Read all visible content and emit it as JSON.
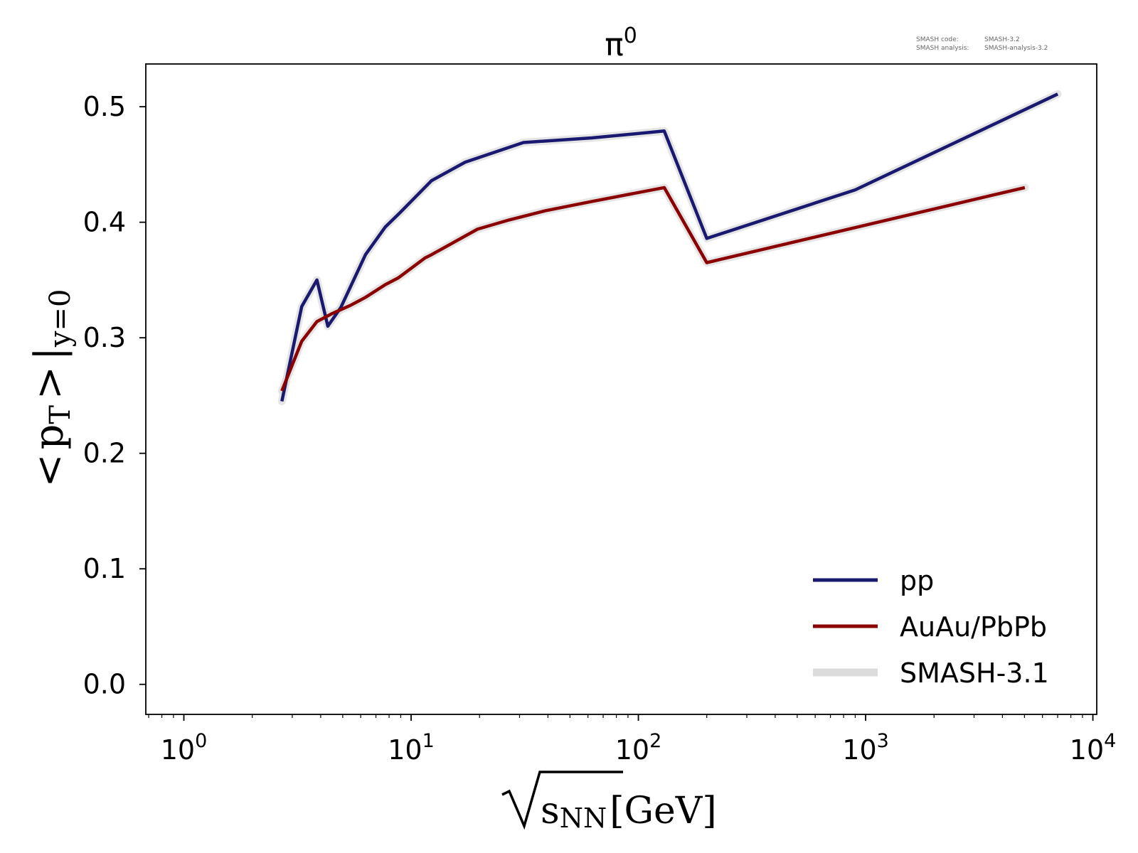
{
  "chart_data": {
    "type": "line",
    "title": "π⁰",
    "title_base": "π",
    "title_sup": "0",
    "xlabel": "√sNN [GeV]",
    "xlabel_parts": {
      "base": "s",
      "sub": "NN",
      "unit": "[GeV]"
    },
    "ylabel": "<pT > |y=0",
    "ylabel_parts": {
      "lt": "<",
      "p": "p",
      "p_sub": "T",
      "gt": ">",
      "bar": "|",
      "sub": "y=0"
    },
    "x_scale": "log",
    "xlim": [
      0.68,
      10400
    ],
    "ylim": [
      -0.026,
      0.537
    ],
    "x_ticks": [
      {
        "value": 1,
        "base": "10",
        "exp": "0"
      },
      {
        "value": 10,
        "base": "10",
        "exp": "1"
      },
      {
        "value": 100,
        "base": "10",
        "exp": "2"
      },
      {
        "value": 1000,
        "base": "10",
        "exp": "3"
      },
      {
        "value": 10000,
        "base": "10",
        "exp": "4"
      }
    ],
    "y_ticks": [
      {
        "value": 0.0,
        "label": "0.0"
      },
      {
        "value": 0.1,
        "label": "0.1"
      },
      {
        "value": 0.2,
        "label": "0.2"
      },
      {
        "value": 0.3,
        "label": "0.3"
      },
      {
        "value": 0.4,
        "label": "0.4"
      },
      {
        "value": 0.5,
        "label": "0.5"
      }
    ],
    "grid": false,
    "legend_position": "bottom-right",
    "series": [
      {
        "name": "pp",
        "color": "#191970",
        "x": [
          2.7,
          3.3,
          3.85,
          4.3,
          4.9,
          6.3,
          7.7,
          8.8,
          12.3,
          17.3,
          31.2,
          62.4,
          130,
          200,
          900,
          7000
        ],
        "y": [
          0.245,
          0.327,
          0.35,
          0.31,
          0.326,
          0.372,
          0.396,
          0.407,
          0.436,
          0.452,
          0.469,
          0.473,
          0.479,
          0.386,
          0.428,
          0.511
        ]
      },
      {
        "name": "AuAu/PbPb",
        "color": "#8b0000",
        "x": [
          2.7,
          3.3,
          3.85,
          4.5,
          5.4,
          6.3,
          7.7,
          8.8,
          11.5,
          12.3,
          19.6,
          27,
          39,
          62.4,
          130,
          200,
          2760,
          5020
        ],
        "y": [
          0.254,
          0.297,
          0.314,
          0.321,
          0.328,
          0.335,
          0.346,
          0.352,
          0.369,
          0.372,
          0.394,
          0.402,
          0.41,
          0.418,
          0.43,
          0.365,
          0.418,
          0.43
        ]
      },
      {
        "name": "SMASH-3.1",
        "role": "reference band",
        "color": "#dcdcdc"
      }
    ]
  },
  "stamp": {
    "code_label": "SMASH code:",
    "code_value": "SMASH-3.2",
    "analysis_label": "SMASH analysis:",
    "analysis_value": "SMASH-analysis-3.2"
  }
}
